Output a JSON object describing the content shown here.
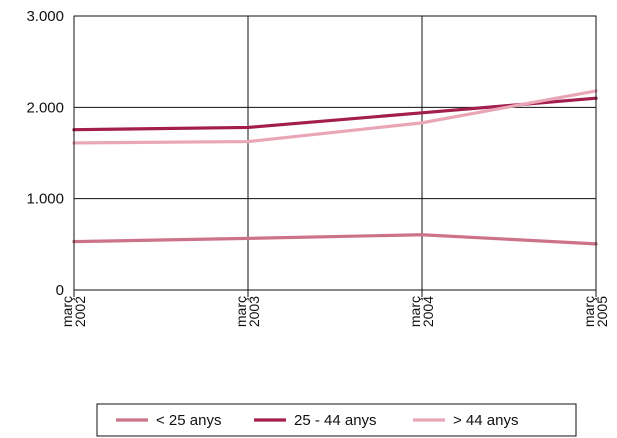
{
  "chart_data": {
    "type": "line",
    "x": [
      "març 2002",
      "març 2003",
      "març 2004",
      "març 2005"
    ],
    "x_ticks": [
      {
        "line1": "març",
        "line2": "2002"
      },
      {
        "line1": "març",
        "line2": "2003"
      },
      {
        "line1": "març",
        "line2": "2004"
      },
      {
        "line1": "març",
        "line2": "2005"
      }
    ],
    "y_ticks": [
      {
        "value": 0,
        "label": "0"
      },
      {
        "value": 1000,
        "label": "1.000"
      },
      {
        "value": 2000,
        "label": "2.000"
      },
      {
        "value": 3000,
        "label": "3.000"
      }
    ],
    "ylim": [
      0,
      3000
    ],
    "grid": true,
    "legend_position": "bottom",
    "title": "",
    "xlabel": "",
    "ylabel": "",
    "series": [
      {
        "name": "< 25 anys",
        "color": "#cc7389",
        "values": [
          530,
          565,
          605,
          505
        ]
      },
      {
        "name": "25 - 44 anys",
        "color": "#a31e4e",
        "values": [
          1755,
          1780,
          1940,
          2100
        ]
      },
      {
        "name": "> 44 anys",
        "color": "#e8a6b7",
        "values": [
          1610,
          1625,
          1830,
          2180
        ]
      }
    ]
  }
}
